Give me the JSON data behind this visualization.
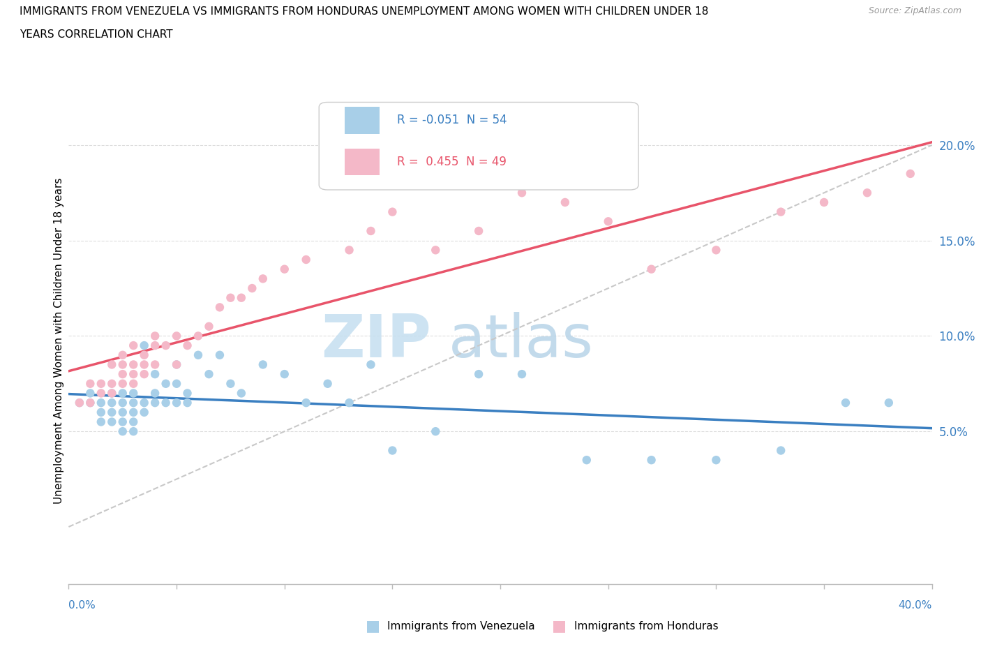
{
  "title_line1": "IMMIGRANTS FROM VENEZUELA VS IMMIGRANTS FROM HONDURAS UNEMPLOYMENT AMONG WOMEN WITH CHILDREN UNDER 18",
  "title_line2": "YEARS CORRELATION CHART",
  "source": "Source: ZipAtlas.com",
  "ylabel": "Unemployment Among Women with Children Under 18 years",
  "blue_color": "#a8cfe8",
  "pink_color": "#f4b8c8",
  "blue_line_color": "#3a7fc1",
  "pink_line_color": "#e8546a",
  "grey_dash_color": "#c8c8c8",
  "watermark_zip_color": "#c5dff0",
  "watermark_atlas_color": "#b8d4e8",
  "xlim": [
    0.0,
    0.4
  ],
  "ylim": [
    -0.03,
    0.225
  ],
  "ytick_values": [
    0.05,
    0.1,
    0.15,
    0.2
  ],
  "ytick_labels": [
    "5.0%",
    "10.0%",
    "15.0%",
    "20.0%"
  ],
  "xtick_values": [
    0.0,
    0.05,
    0.1,
    0.15,
    0.2,
    0.25,
    0.3,
    0.35,
    0.4
  ],
  "legend_text_blue": "R = -0.051  N = 54",
  "legend_text_pink": "R =  0.455  N = 49",
  "legend_label_blue": "Immigrants from Venezuela",
  "legend_label_pink": "Immigrants from Honduras",
  "venezuela_x": [
    0.005,
    0.01,
    0.01,
    0.015,
    0.015,
    0.015,
    0.02,
    0.02,
    0.02,
    0.02,
    0.025,
    0.025,
    0.025,
    0.025,
    0.025,
    0.03,
    0.03,
    0.03,
    0.03,
    0.03,
    0.035,
    0.035,
    0.035,
    0.04,
    0.04,
    0.04,
    0.045,
    0.045,
    0.05,
    0.05,
    0.05,
    0.055,
    0.055,
    0.06,
    0.065,
    0.07,
    0.075,
    0.08,
    0.09,
    0.1,
    0.11,
    0.12,
    0.13,
    0.14,
    0.15,
    0.17,
    0.19,
    0.21,
    0.24,
    0.27,
    0.3,
    0.33,
    0.36,
    0.38
  ],
  "venezuela_y": [
    0.065,
    0.07,
    0.065,
    0.065,
    0.06,
    0.055,
    0.07,
    0.065,
    0.055,
    0.06,
    0.07,
    0.065,
    0.06,
    0.055,
    0.05,
    0.07,
    0.065,
    0.06,
    0.055,
    0.05,
    0.095,
    0.065,
    0.06,
    0.08,
    0.07,
    0.065,
    0.075,
    0.065,
    0.085,
    0.075,
    0.065,
    0.07,
    0.065,
    0.09,
    0.08,
    0.09,
    0.075,
    0.07,
    0.085,
    0.08,
    0.065,
    0.075,
    0.065,
    0.085,
    0.04,
    0.05,
    0.08,
    0.08,
    0.035,
    0.035,
    0.035,
    0.04,
    0.065,
    0.065
  ],
  "honduras_x": [
    0.005,
    0.01,
    0.01,
    0.015,
    0.015,
    0.02,
    0.02,
    0.02,
    0.025,
    0.025,
    0.025,
    0.025,
    0.03,
    0.03,
    0.03,
    0.03,
    0.035,
    0.035,
    0.035,
    0.04,
    0.04,
    0.04,
    0.045,
    0.05,
    0.05,
    0.055,
    0.06,
    0.065,
    0.07,
    0.075,
    0.08,
    0.085,
    0.09,
    0.1,
    0.11,
    0.13,
    0.14,
    0.15,
    0.17,
    0.19,
    0.21,
    0.23,
    0.25,
    0.27,
    0.3,
    0.33,
    0.35,
    0.37,
    0.39
  ],
  "honduras_y": [
    0.065,
    0.075,
    0.065,
    0.075,
    0.07,
    0.085,
    0.075,
    0.07,
    0.09,
    0.085,
    0.08,
    0.075,
    0.095,
    0.085,
    0.08,
    0.075,
    0.09,
    0.085,
    0.08,
    0.1,
    0.095,
    0.085,
    0.095,
    0.1,
    0.085,
    0.095,
    0.1,
    0.105,
    0.115,
    0.12,
    0.12,
    0.125,
    0.13,
    0.135,
    0.14,
    0.145,
    0.155,
    0.165,
    0.145,
    0.155,
    0.175,
    0.17,
    0.16,
    0.135,
    0.145,
    0.165,
    0.17,
    0.175,
    0.185
  ]
}
